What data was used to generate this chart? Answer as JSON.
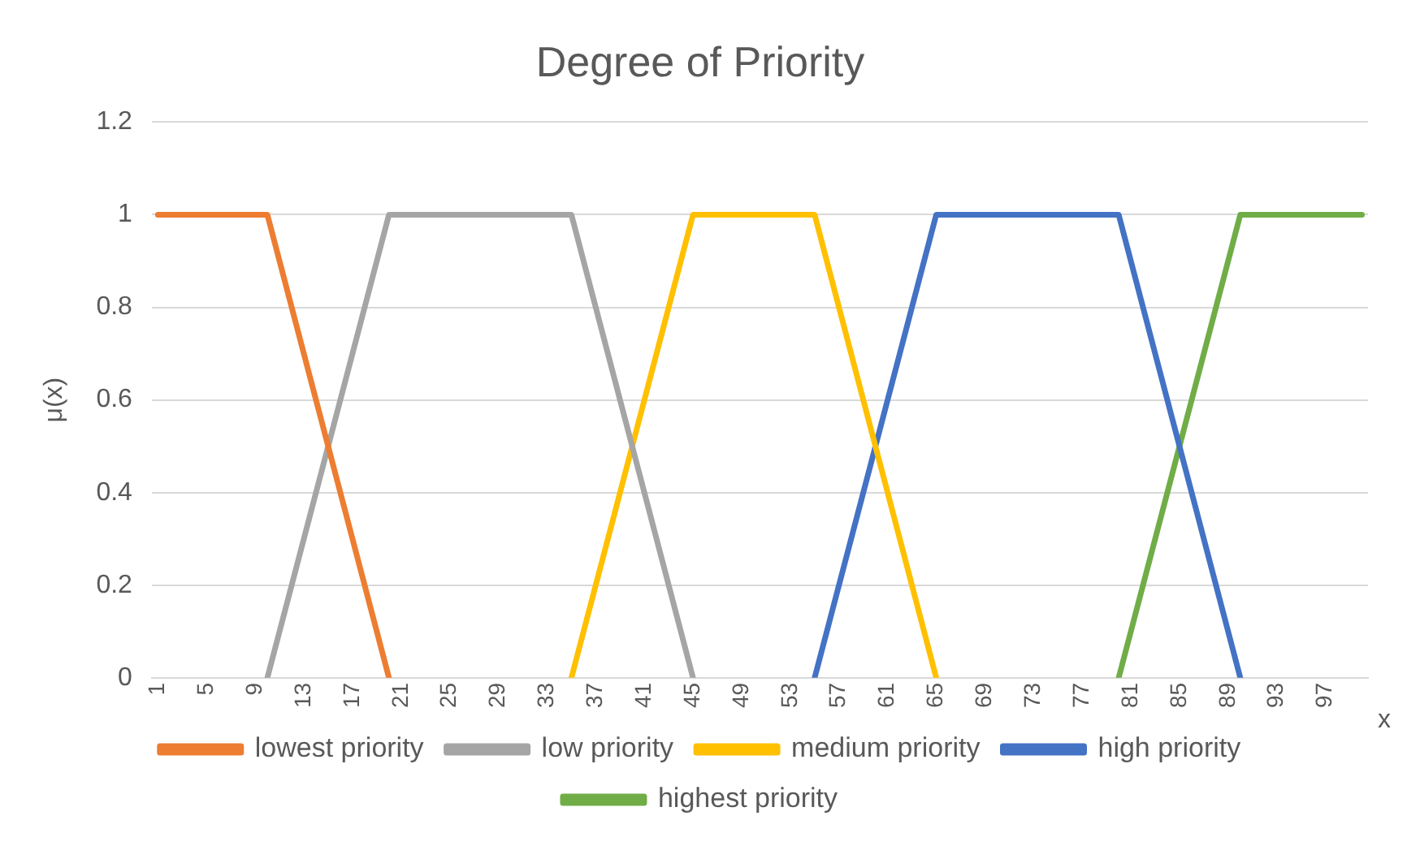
{
  "chart_data": {
    "type": "line",
    "title": "Degree of Priority",
    "xlabel": "x",
    "ylabel": "μ(x)",
    "xlim": [
      0.5,
      100.5
    ],
    "xticks": [
      1,
      5,
      9,
      13,
      17,
      21,
      25,
      29,
      33,
      37,
      41,
      45,
      49,
      53,
      57,
      61,
      65,
      69,
      73,
      77,
      81,
      85,
      89,
      93,
      97
    ],
    "ylim": [
      0,
      1.2
    ],
    "yticks": [
      0,
      0.2,
      0.4,
      0.6,
      0.8,
      1,
      1.2
    ],
    "grid": "y",
    "legend": "bottom",
    "marker": "none",
    "line_style": "solid",
    "series": [
      {
        "name": "lowest priority",
        "color": "#ed7d31",
        "x": [
          1,
          10,
          20
        ],
        "values": [
          1,
          1,
          0
        ]
      },
      {
        "name": "low priority",
        "color": "#a5a5a5",
        "x": [
          10,
          20,
          35,
          45
        ],
        "values": [
          0,
          1,
          1,
          0
        ]
      },
      {
        "name": "medium priority",
        "color": "#ffc000",
        "x": [
          35,
          45,
          55,
          65
        ],
        "values": [
          0,
          1,
          1,
          0
        ]
      },
      {
        "name": "high priority",
        "color": "#4472c4",
        "x": [
          55,
          65,
          80,
          90
        ],
        "values": [
          0,
          1,
          1,
          0
        ]
      },
      {
        "name": "highest priority",
        "color": "#70ad47",
        "x": [
          80,
          90,
          100
        ],
        "values": [
          0,
          1,
          1
        ]
      }
    ]
  }
}
